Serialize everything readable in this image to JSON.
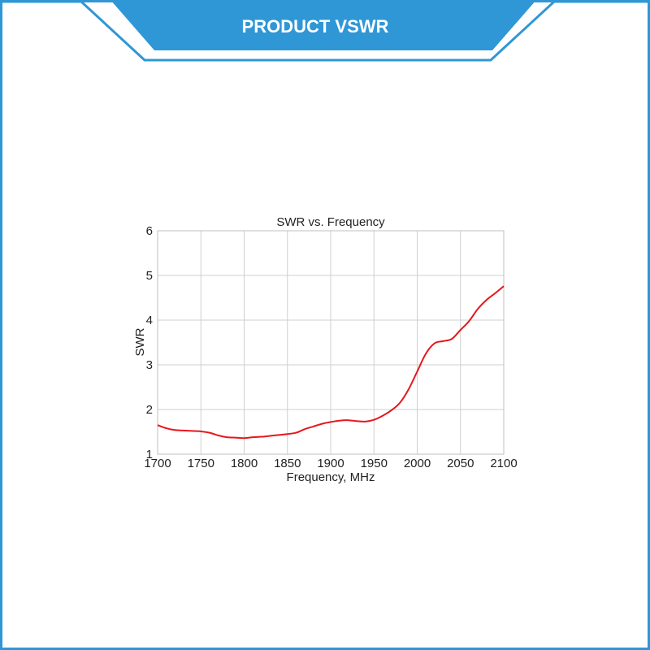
{
  "banner": {
    "title": "PRODUCT  VSWR",
    "color": "#2f97d6"
  },
  "chart_data": {
    "type": "line",
    "title": "SWR vs. Frequency",
    "xlabel": "Frequency, MHz",
    "ylabel": "SWR",
    "xlim": [
      1700,
      2100
    ],
    "ylim": [
      1,
      6
    ],
    "xticks": [
      1700,
      1750,
      1800,
      1850,
      1900,
      1950,
      2000,
      2050,
      2100
    ],
    "yticks": [
      1,
      2,
      3,
      4,
      5,
      6
    ],
    "grid": true,
    "line_color": "#e8161b",
    "series": [
      {
        "x": [
          1700,
          1710,
          1720,
          1730,
          1740,
          1750,
          1760,
          1770,
          1780,
          1790,
          1800,
          1810,
          1820,
          1830,
          1840,
          1850,
          1860,
          1870,
          1880,
          1890,
          1900,
          1910,
          1920,
          1930,
          1940,
          1950,
          1960,
          1970,
          1980,
          1990,
          2000,
          2010,
          2020,
          2030,
          2040,
          2050,
          2060,
          2070,
          2080,
          2090,
          2100
        ],
        "values": [
          1.65,
          1.58,
          1.54,
          1.53,
          1.52,
          1.51,
          1.48,
          1.42,
          1.38,
          1.37,
          1.36,
          1.38,
          1.39,
          1.41,
          1.43,
          1.45,
          1.48,
          1.56,
          1.62,
          1.68,
          1.72,
          1.75,
          1.76,
          1.74,
          1.73,
          1.77,
          1.86,
          1.98,
          2.15,
          2.45,
          2.85,
          3.25,
          3.48,
          3.53,
          3.58,
          3.78,
          3.98,
          4.25,
          4.45,
          4.6,
          4.76
        ]
      }
    ]
  }
}
